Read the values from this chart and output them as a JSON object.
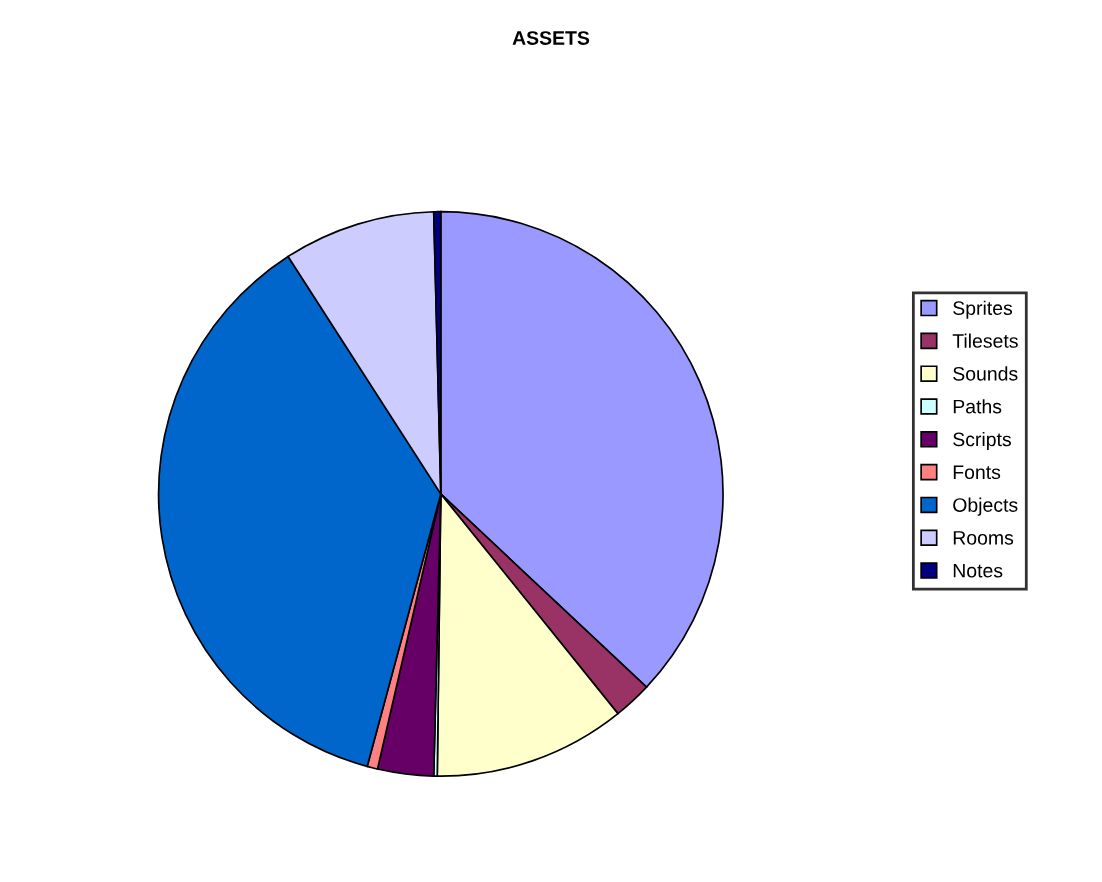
{
  "chart_data": {
    "type": "pie",
    "title": "ASSETS",
    "categories": [
      "Sprites",
      "Tilesets",
      "Sounds",
      "Paths",
      "Scripts",
      "Fonts",
      "Objects",
      "Rooms",
      "Notes"
    ],
    "values": [
      37,
      2.2,
      11,
      0.2,
      3.2,
      0.6,
      36.7,
      8.7,
      0.4
    ],
    "colors": [
      "#9999ff",
      "#993366",
      "#ffffcc",
      "#ccffff",
      "#660066",
      "#ff8080",
      "#0066cc",
      "#ccccff",
      "#000080"
    ],
    "legend": "right"
  }
}
